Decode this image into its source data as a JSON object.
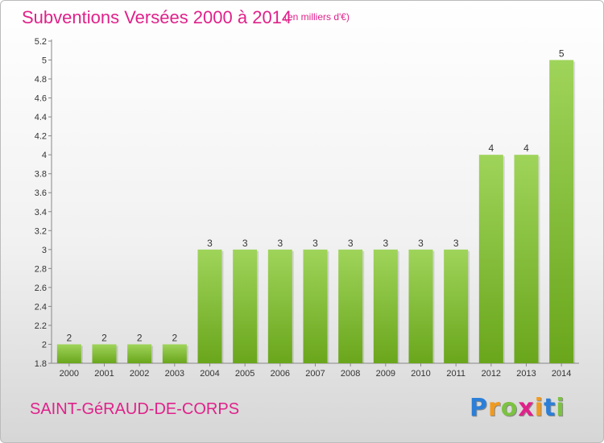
{
  "header": {
    "title": "Subventions Versées 2000 à 2014",
    "unit_note": "(en milliers d'€)"
  },
  "footer": {
    "commune": "SAINT-GéRAUD-DE-CORPS",
    "logo_letters": [
      {
        "ch": "P",
        "color": "#2b7fd8"
      },
      {
        "ch": "r",
        "color": "#f29a1d"
      },
      {
        "ch": "o",
        "color": "#7cc242"
      },
      {
        "ch": "x",
        "color": "#e0218a"
      },
      {
        "ch": "i",
        "color": "#f29a1d"
      },
      {
        "ch": "t",
        "color": "#2b7fd8"
      },
      {
        "ch": "i",
        "color": "#7cc242"
      }
    ]
  },
  "colors": {
    "title": "#e0218a",
    "bar_light": "#9fd45a",
    "bar_dark": "#6aa61c",
    "axis_text": "#333333",
    "grid": "#cccccc"
  },
  "chart_data": {
    "type": "bar",
    "categories": [
      "2000",
      "2001",
      "2002",
      "2003",
      "2004",
      "2005",
      "2006",
      "2007",
      "2008",
      "2009",
      "2010",
      "2011",
      "2012",
      "2013",
      "2014"
    ],
    "values": [
      2,
      2,
      2,
      2,
      3,
      3,
      3,
      3,
      3,
      3,
      3,
      3,
      4,
      4,
      5
    ],
    "data_labels": [
      "2",
      "2",
      "2",
      "2",
      "3",
      "3",
      "3",
      "3",
      "3",
      "3",
      "3",
      "3",
      "4",
      "4",
      "5"
    ],
    "title": "Subventions Versées 2000 à 2014",
    "subtitle": "(en milliers d'€)",
    "xlabel": "",
    "ylabel": "",
    "ylim": [
      1.8,
      5.2
    ],
    "yticks": [
      "1.8",
      "2",
      "2.2",
      "2.4",
      "2.6",
      "2.8",
      "3",
      "3.2",
      "3.4",
      "3.6",
      "3.8",
      "4",
      "4.2",
      "4.4",
      "4.6",
      "4.8",
      "5",
      "5.2"
    ],
    "grid": false,
    "legend": "none"
  }
}
